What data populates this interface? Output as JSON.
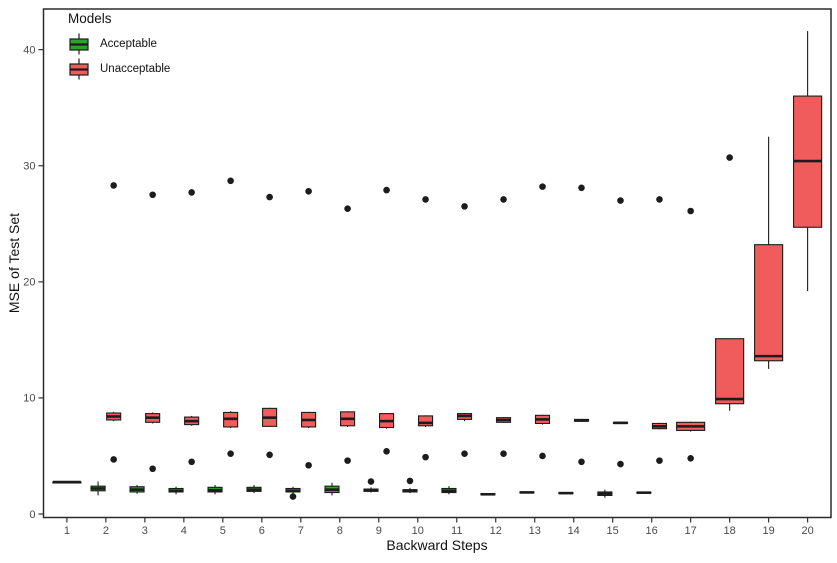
{
  "chart_data": {
    "type": "boxplot",
    "title": "",
    "xlabel": "Backward Steps",
    "ylabel": "MSE of Test Set",
    "x_ticks": [
      1,
      2,
      3,
      4,
      5,
      6,
      7,
      8,
      9,
      10,
      11,
      12,
      13,
      14,
      15,
      16,
      17,
      18,
      19,
      20
    ],
    "y_ticks": [
      0,
      10,
      20,
      30,
      40
    ],
    "xlim": [
      0.4,
      20.6
    ],
    "ylim": [
      -0.3,
      43.5
    ],
    "grid": "off",
    "panel_border": "on",
    "legend": {
      "title": "Models",
      "position": "top-left",
      "entries": [
        {
          "label": "Acceptable",
          "color": "#2ba22b"
        },
        {
          "label": "Unacceptable",
          "color": "#f05c5c"
        }
      ]
    },
    "series": [
      {
        "name": "Acceptable",
        "color": "#2ba22b",
        "boxes": [
          {
            "x": 1,
            "low": 2.75,
            "q1": 2.75,
            "med": 2.75,
            "q3": 2.75,
            "high": 2.75,
            "outliers": []
          },
          {
            "x": 2,
            "low": 1.6,
            "q1": 2.0,
            "med": 2.2,
            "q3": 2.4,
            "high": 2.8,
            "outliers": []
          },
          {
            "x": 3,
            "low": 1.75,
            "q1": 1.9,
            "med": 2.1,
            "q3": 2.35,
            "high": 2.5,
            "outliers": []
          },
          {
            "x": 4,
            "low": 1.7,
            "q1": 1.9,
            "med": 2.0,
            "q3": 2.2,
            "high": 2.35,
            "outliers": []
          },
          {
            "x": 5,
            "low": 1.7,
            "q1": 1.9,
            "med": 2.05,
            "q3": 2.3,
            "high": 2.5,
            "outliers": []
          },
          {
            "x": 6,
            "low": 1.8,
            "q1": 1.95,
            "med": 2.1,
            "q3": 2.3,
            "high": 2.5,
            "outliers": []
          },
          {
            "x": 7,
            "low": 1.75,
            "q1": 1.9,
            "med": 2.0,
            "q3": 2.2,
            "high": 2.35,
            "outliers": [
              1.5
            ]
          },
          {
            "x": 8,
            "low": 1.6,
            "q1": 1.85,
            "med": 2.1,
            "q3": 2.4,
            "high": 2.7,
            "outliers": []
          },
          {
            "x": 9,
            "low": 1.85,
            "q1": 1.95,
            "med": 2.05,
            "q3": 2.15,
            "high": 2.3,
            "outliers": [
              2.8
            ]
          },
          {
            "x": 10,
            "low": 1.8,
            "q1": 1.9,
            "med": 2.0,
            "q3": 2.1,
            "high": 2.25,
            "outliers": [
              2.85
            ]
          },
          {
            "x": 11,
            "low": 1.7,
            "q1": 1.85,
            "med": 2.0,
            "q3": 2.2,
            "high": 2.4,
            "outliers": []
          },
          {
            "x": 12,
            "low": 1.6,
            "q1": 1.65,
            "med": 1.7,
            "q3": 1.75,
            "high": 1.8,
            "outliers": []
          },
          {
            "x": 13,
            "low": 1.8,
            "q1": 1.83,
            "med": 1.86,
            "q3": 1.9,
            "high": 1.93,
            "outliers": []
          },
          {
            "x": 14,
            "low": 1.73,
            "q1": 1.77,
            "med": 1.8,
            "q3": 1.84,
            "high": 1.87,
            "outliers": []
          },
          {
            "x": 15,
            "low": 1.4,
            "q1": 1.6,
            "med": 1.75,
            "q3": 1.9,
            "high": 2.1,
            "outliers": []
          },
          {
            "x": 16,
            "low": 1.77,
            "q1": 1.8,
            "med": 1.84,
            "q3": 1.88,
            "high": 1.9,
            "outliers": []
          }
        ]
      },
      {
        "name": "Unacceptable",
        "color": "#f05c5c",
        "boxes": [
          {
            "x": 2,
            "low": 8.0,
            "q1": 8.1,
            "med": 8.4,
            "q3": 8.7,
            "high": 8.8,
            "outliers": [
              28.3,
              4.7
            ]
          },
          {
            "x": 3,
            "low": 7.8,
            "q1": 7.9,
            "med": 8.3,
            "q3": 8.65,
            "high": 8.75,
            "outliers": [
              27.5,
              3.9
            ]
          },
          {
            "x": 4,
            "low": 7.6,
            "q1": 7.7,
            "med": 8.0,
            "q3": 8.35,
            "high": 8.45,
            "outliers": [
              27.7,
              4.5
            ]
          },
          {
            "x": 5,
            "low": 7.4,
            "q1": 7.5,
            "med": 8.2,
            "q3": 8.75,
            "high": 8.85,
            "outliers": [
              28.7,
              5.2
            ]
          },
          {
            "x": 6,
            "low": 7.5,
            "q1": 7.55,
            "med": 8.3,
            "q3": 9.1,
            "high": 9.15,
            "outliers": [
              27.3,
              5.1
            ]
          },
          {
            "x": 7,
            "low": 7.4,
            "q1": 7.5,
            "med": 8.1,
            "q3": 8.75,
            "high": 8.8,
            "outliers": [
              27.8,
              4.2
            ]
          },
          {
            "x": 8,
            "low": 7.5,
            "q1": 7.6,
            "med": 8.2,
            "q3": 8.8,
            "high": 8.85,
            "outliers": [
              26.3,
              4.6
            ]
          },
          {
            "x": 9,
            "low": 7.35,
            "q1": 7.45,
            "med": 8.0,
            "q3": 8.65,
            "high": 8.7,
            "outliers": [
              27.9,
              5.4
            ]
          },
          {
            "x": 10,
            "low": 7.5,
            "q1": 7.6,
            "med": 7.85,
            "q3": 8.45,
            "high": 8.5,
            "outliers": [
              27.1,
              4.9
            ]
          },
          {
            "x": 11,
            "low": 8.0,
            "q1": 8.15,
            "med": 8.45,
            "q3": 8.65,
            "high": 8.7,
            "outliers": [
              26.5,
              5.2
            ]
          },
          {
            "x": 12,
            "low": 7.85,
            "q1": 7.9,
            "med": 8.1,
            "q3": 8.3,
            "high": 8.35,
            "outliers": [
              27.1,
              5.2
            ]
          },
          {
            "x": 13,
            "low": 7.7,
            "q1": 7.8,
            "med": 8.15,
            "q3": 8.5,
            "high": 8.55,
            "outliers": [
              28.2,
              5.0
            ]
          },
          {
            "x": 14,
            "low": 7.95,
            "q1": 8.0,
            "med": 8.05,
            "q3": 8.15,
            "high": 8.2,
            "outliers": [
              28.1,
              4.5
            ]
          },
          {
            "x": 15,
            "low": 7.75,
            "q1": 7.8,
            "med": 7.85,
            "q3": 7.9,
            "high": 7.95,
            "outliers": [
              27.0,
              4.3
            ]
          },
          {
            "x": 16,
            "low": 7.3,
            "q1": 7.35,
            "med": 7.55,
            "q3": 7.8,
            "high": 7.85,
            "outliers": [
              27.1,
              4.6
            ]
          },
          {
            "x": 17,
            "low": 7.1,
            "q1": 7.2,
            "med": 7.55,
            "q3": 7.9,
            "high": 7.95,
            "outliers": [
              26.1,
              4.8
            ]
          },
          {
            "x": 18,
            "low": 8.9,
            "q1": 9.5,
            "med": 9.9,
            "q3": 15.1,
            "high": 15.1,
            "outliers": [
              30.7
            ]
          },
          {
            "x": 19,
            "low": 12.5,
            "q1": 13.2,
            "med": 13.6,
            "q3": 23.2,
            "high": 32.5,
            "outliers": []
          },
          {
            "x": 20,
            "low": 19.2,
            "q1": 24.7,
            "med": 30.4,
            "q3": 36.0,
            "high": 41.6,
            "outliers": []
          }
        ]
      }
    ]
  }
}
